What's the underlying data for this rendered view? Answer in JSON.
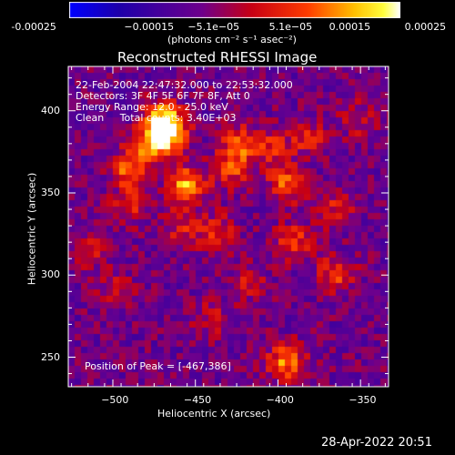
{
  "chart_data": {
    "type": "heatmap",
    "title": "Reconstructed RHESSI Image",
    "xlabel": "Heliocentric X (arcsec)",
    "ylabel": "Heliocentric Y (arcsec)",
    "xlim": [
      -527,
      -333
    ],
    "ylim": [
      232,
      427
    ],
    "x_ticks": [
      -500,
      -450,
      -400,
      -350
    ],
    "x_tick_labels": [
      "−500",
      "−450",
      "−400",
      "−350"
    ],
    "y_ticks": [
      250,
      300,
      350,
      400
    ],
    "y_tick_labels": [
      "250",
      "300",
      "350",
      "400"
    ],
    "colorbar": {
      "range": [
        -0.00025,
        0.00025
      ],
      "tick_labels": [
        "-0.00025",
        "−0.00015",
        "−5.1e−05",
        "5.1e−05",
        "0.00015",
        "0.00025"
      ],
      "unit_label": "(photons cm⁻² s⁻¹ asec⁻²)"
    },
    "annotations": [
      "22-Feb-2004 22:47:32.000 to 22:53:32.000",
      "Detectors: 3F 4F 5F 6F 7F 8F, Att 0",
      "Energy Range: 12.0 - 25.0 keV",
      "Clean     Total counts: 3.40E+03"
    ],
    "peak_label": "Position of Peak = [-467,386]",
    "peak_position": [
      -467,
      386
    ],
    "bright_sources": [
      {
        "x": -466,
        "y": 386,
        "value": 0.00024
      },
      {
        "x": -470,
        "y": 395,
        "value": 0.00022
      },
      {
        "x": -455,
        "y": 355,
        "value": 0.00023
      },
      {
        "x": -478,
        "y": 378,
        "value": 0.00018
      },
      {
        "x": -490,
        "y": 364,
        "value": 0.00017
      },
      {
        "x": -423,
        "y": 380,
        "value": 0.00016
      },
      {
        "x": -428,
        "y": 364,
        "value": 0.00014
      },
      {
        "x": -395,
        "y": 355,
        "value": 0.00016
      },
      {
        "x": -403,
        "y": 377,
        "value": 0.00012
      },
      {
        "x": -381,
        "y": 383,
        "value": 0.00012
      },
      {
        "x": -390,
        "y": 320,
        "value": 0.00014
      },
      {
        "x": -365,
        "y": 300,
        "value": 0.00015
      },
      {
        "x": -437,
        "y": 326,
        "value": 0.00012
      },
      {
        "x": -458,
        "y": 330,
        "value": 0.00011
      },
      {
        "x": -515,
        "y": 315,
        "value": 0.0001
      },
      {
        "x": -490,
        "y": 342,
        "value": 0.00011
      },
      {
        "x": -395,
        "y": 247,
        "value": 0.0002
      },
      {
        "x": -365,
        "y": 340,
        "value": 0.00011
      },
      {
        "x": -352,
        "y": 395,
        "value": 9e-05
      },
      {
        "x": -440,
        "y": 273,
        "value": 8e-05
      },
      {
        "x": -498,
        "y": 290,
        "value": 8e-05
      },
      {
        "x": -418,
        "y": 296,
        "value": 9e-05
      }
    ]
  },
  "footer": {
    "timestamp": "28-Apr-2022 20:51"
  }
}
